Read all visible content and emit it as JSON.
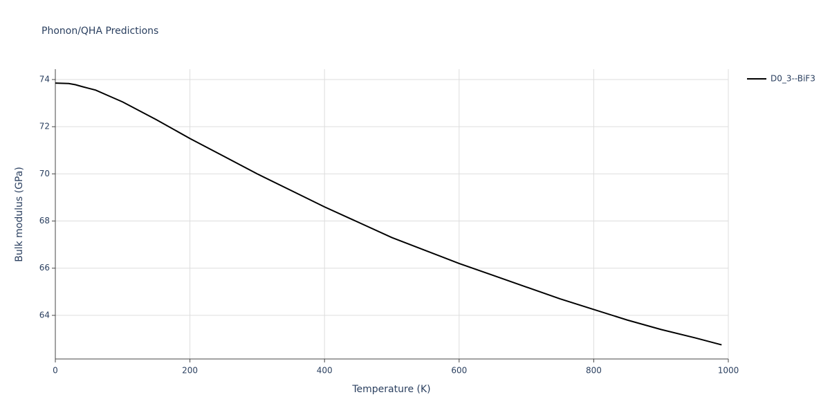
{
  "chart_data": {
    "type": "line",
    "title": "Phonon/QHA Predictions",
    "x_label": "Temperature (K)",
    "y_label": "Bulk modulus (GPa)",
    "x": [
      0,
      20,
      30,
      40,
      60,
      80,
      100,
      150,
      200,
      250,
      300,
      350,
      400,
      450,
      500,
      550,
      600,
      650,
      700,
      750,
      800,
      850,
      900,
      950,
      990
    ],
    "series": [
      {
        "name": "D0_3--BiF3",
        "color": "#000000",
        "values": [
          73.85,
          73.83,
          73.78,
          73.7,
          73.55,
          73.3,
          73.05,
          72.3,
          71.5,
          70.75,
          70.0,
          69.3,
          68.6,
          67.95,
          67.3,
          66.75,
          66.2,
          65.7,
          65.2,
          64.7,
          64.25,
          63.8,
          63.4,
          63.05,
          62.75
        ]
      }
    ],
    "xlim": [
      0,
      1000
    ],
    "xticks": [
      0,
      200,
      400,
      600,
      800,
      1000
    ],
    "ylim": [
      62.15,
      74.44
    ],
    "yticks": [
      64,
      66,
      68,
      70,
      72,
      74
    ],
    "grid": true,
    "legend": "right"
  }
}
